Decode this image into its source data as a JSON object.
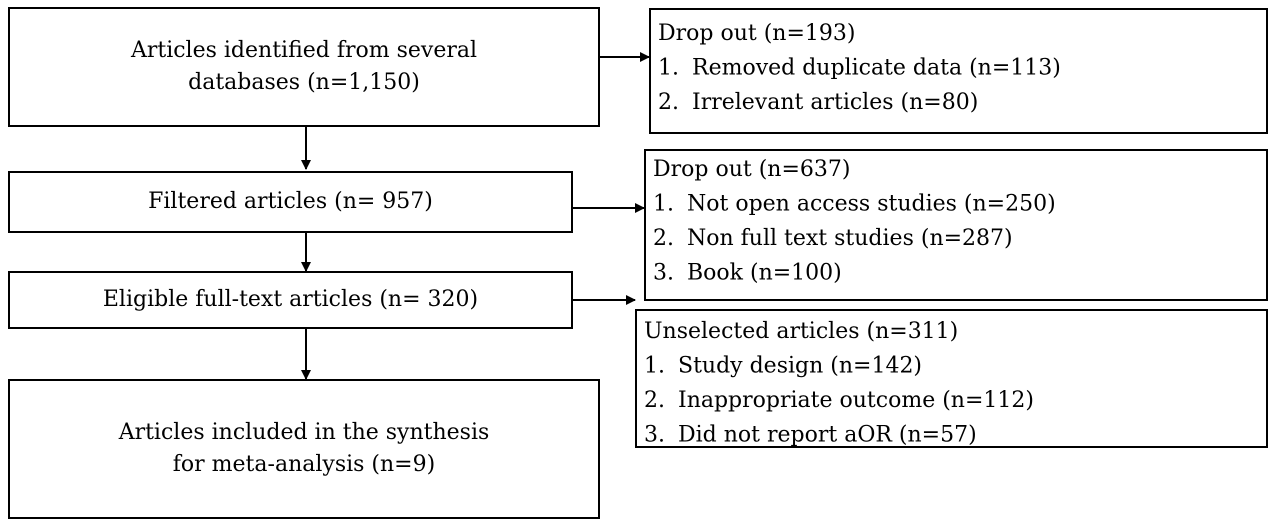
{
  "nodes": [
    {
      "lines": [
        "Articles identified from several",
        "databases (n=1,150)"
      ]
    },
    {
      "lines": [
        "Filtered articles (n= 957)"
      ]
    },
    {
      "lines": [
        "Eligible full-text articles (n= 320)"
      ]
    },
    {
      "lines": [
        "Articles included in the synthesis",
        "for meta-analysis (n=9)"
      ]
    }
  ],
  "exclusions": [
    {
      "title": "Drop out (n=193)",
      "items": [
        {
          "num": "1.",
          "text": "Removed duplicate data (n=113)"
        },
        {
          "num": "2.",
          "text": "Irrelevant articles (n=80)"
        }
      ]
    },
    {
      "title": "Drop out (n=637)",
      "items": [
        {
          "num": "1.",
          "text": "Not open access studies (n=250)"
        },
        {
          "num": "2.",
          "text": "Non full text studies (n=287)"
        },
        {
          "num": "3.",
          "text": "Book (n=100)"
        }
      ]
    },
    {
      "title": "Unselected articles (n=311)",
      "items": [
        {
          "num": "1.",
          "text": "Study design (n=142)"
        },
        {
          "num": "2.",
          "text": "Inappropriate outcome (n=112)"
        },
        {
          "num": "3.",
          "text": "Did not report aOR (n=57)"
        }
      ]
    }
  ]
}
